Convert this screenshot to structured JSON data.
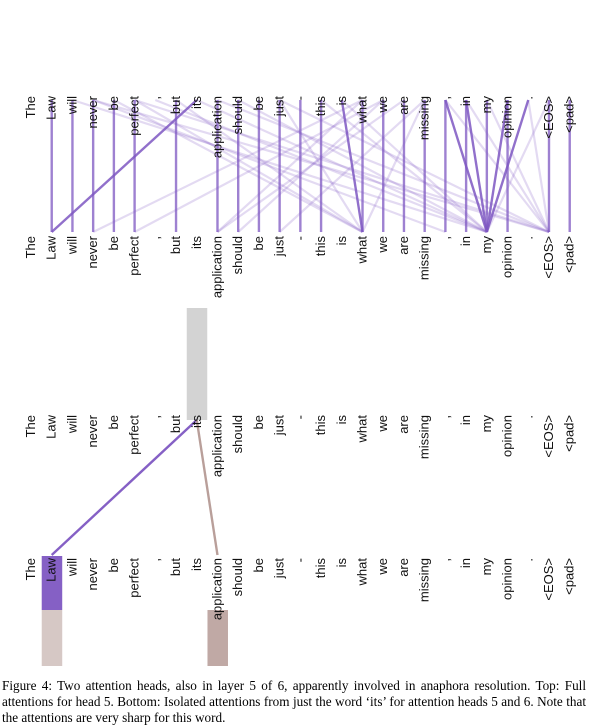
{
  "tokens": [
    "The",
    "Law",
    "will",
    "never",
    "be",
    "perfect",
    ",",
    "but",
    "its",
    "application",
    "should",
    "be",
    "just",
    "-",
    "this",
    "is",
    "what",
    "we",
    "are",
    "missing",
    ",",
    "in",
    "my",
    "opinion",
    ".",
    "<EOS>",
    "<pad>"
  ],
  "colors": {
    "head_primary": "#7e57c2",
    "head_secondary": "#b59a95",
    "highlight_box": "#d3d3d3"
  },
  "top_panel": {
    "head": 5,
    "strong_links": [
      [
        1,
        1
      ],
      [
        2,
        2
      ],
      [
        3,
        3
      ],
      [
        4,
        4
      ],
      [
        5,
        5
      ],
      [
        7,
        7
      ],
      [
        9,
        9
      ],
      [
        10,
        10
      ],
      [
        11,
        11
      ],
      [
        12,
        12
      ],
      [
        13,
        13
      ],
      [
        14,
        14
      ],
      [
        16,
        16
      ],
      [
        17,
        17
      ],
      [
        18,
        18
      ],
      [
        19,
        19
      ],
      [
        20,
        20
      ],
      [
        21,
        21
      ],
      [
        22,
        22
      ],
      [
        23,
        23
      ],
      [
        25,
        25
      ],
      [
        26,
        26
      ],
      [
        8,
        1
      ],
      [
        15,
        16
      ],
      [
        20,
        22
      ],
      [
        21,
        22
      ],
      [
        23,
        22
      ],
      [
        24,
        22
      ]
    ],
    "weak_links": [
      [
        3,
        20
      ],
      [
        3,
        25
      ],
      [
        4,
        16
      ],
      [
        5,
        25
      ],
      [
        6,
        22
      ],
      [
        7,
        16
      ],
      [
        8,
        22
      ],
      [
        9,
        25
      ],
      [
        10,
        22
      ],
      [
        12,
        16
      ],
      [
        14,
        22
      ],
      [
        15,
        22
      ],
      [
        16,
        9
      ],
      [
        17,
        10
      ],
      [
        18,
        9
      ],
      [
        19,
        16
      ],
      [
        19,
        12
      ],
      [
        20,
        25
      ],
      [
        21,
        25
      ],
      [
        22,
        25
      ],
      [
        24,
        25
      ],
      [
        25,
        22
      ],
      [
        5,
        16
      ],
      [
        2,
        22
      ],
      [
        12,
        25
      ],
      [
        17,
        5
      ],
      [
        16,
        3
      ]
    ]
  },
  "bottom_panel": {
    "source_token_index": 8,
    "attentions": [
      {
        "head": 5,
        "target_index": 1,
        "weight": 0.95
      },
      {
        "head": 6,
        "target_index": 9,
        "weight": 0.85
      },
      {
        "head": 6,
        "target_index": 1,
        "weight": 0.55
      }
    ]
  },
  "caption": "Figure 4: Two attention heads, also in layer 5 of 6, apparently involved in anaphora resolution. Top: Full attentions for head 5. Bottom: Isolated attentions from just the word ‘its’ for attention heads 5 and 6. Note that the attentions are very sharp for this word."
}
